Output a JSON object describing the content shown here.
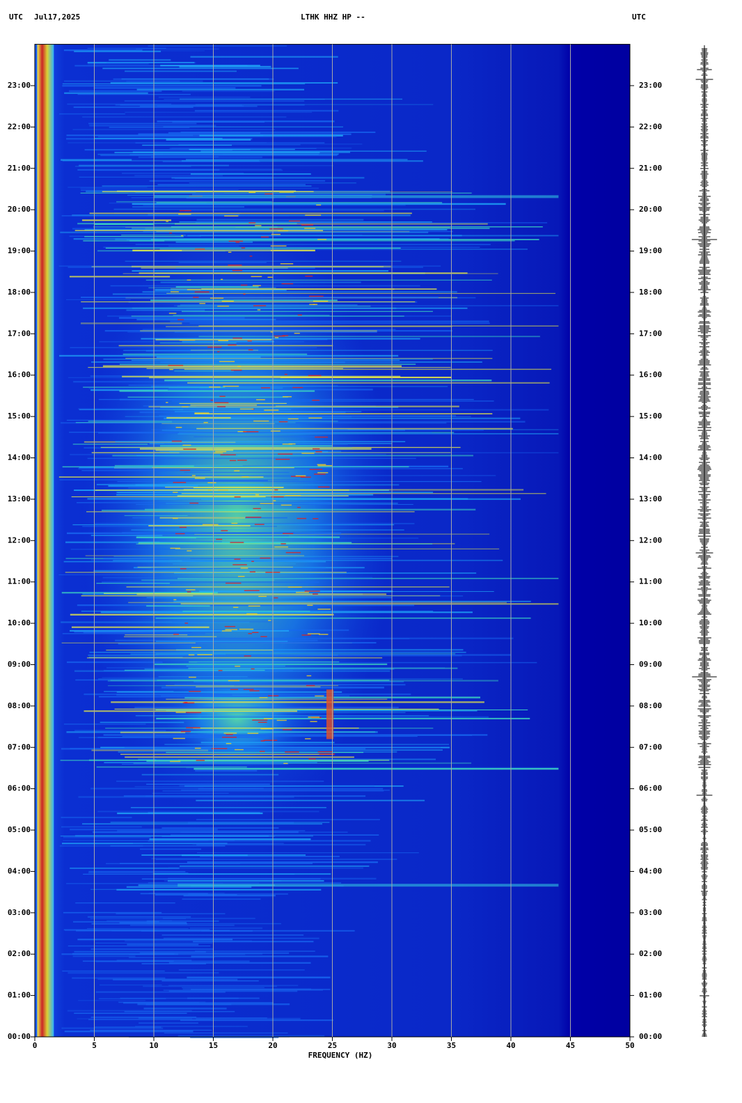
{
  "chart_data": {
    "type": "spectrogram",
    "utc_left": "UTC",
    "date": "Jul17,2025",
    "title": "LTHK HHZ HP --",
    "utc_right": "UTC",
    "xlabel": "FREQUENCY (HZ)",
    "xlim": [
      0,
      50
    ],
    "xticks": [
      0,
      5,
      10,
      15,
      20,
      25,
      30,
      35,
      40,
      45,
      50
    ],
    "ylim": [
      0,
      24
    ],
    "yticks": [
      {
        "value": 0,
        "label": "00:00"
      },
      {
        "value": 1,
        "label": "01:00"
      },
      {
        "value": 2,
        "label": "02:00"
      },
      {
        "value": 3,
        "label": "03:00"
      },
      {
        "value": 4,
        "label": "04:00"
      },
      {
        "value": 5,
        "label": "05:00"
      },
      {
        "value": 6,
        "label": "06:00"
      },
      {
        "value": 7,
        "label": "07:00"
      },
      {
        "value": 8,
        "label": "08:00"
      },
      {
        "value": 9,
        "label": "09:00"
      },
      {
        "value": 10,
        "label": "10:00"
      },
      {
        "value": 11,
        "label": "11:00"
      },
      {
        "value": 12,
        "label": "12:00"
      },
      {
        "value": 13,
        "label": "13:00"
      },
      {
        "value": 14,
        "label": "14:00"
      },
      {
        "value": 15,
        "label": "15:00"
      },
      {
        "value": 16,
        "label": "16:00"
      },
      {
        "value": 17,
        "label": "17:00"
      },
      {
        "value": 18,
        "label": "18:00"
      },
      {
        "value": 19,
        "label": "19:00"
      },
      {
        "value": 20,
        "label": "20:00"
      },
      {
        "value": 21,
        "label": "21:00"
      },
      {
        "value": 22,
        "label": "22:00"
      },
      {
        "value": 23,
        "label": "23:00"
      }
    ],
    "grid": true,
    "grid_color": "#a8a8a8"
  }
}
